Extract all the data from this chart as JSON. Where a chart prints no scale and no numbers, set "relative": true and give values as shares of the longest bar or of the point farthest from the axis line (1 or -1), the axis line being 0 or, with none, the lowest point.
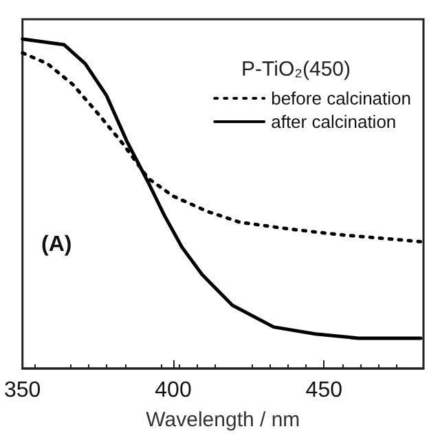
{
  "chart_data": {
    "type": "line",
    "relative": true,
    "xlabel": "Wavelength / nm",
    "legend_title": "P-TiO₂(450)",
    "xlim": [
      350,
      483
    ],
    "xticks": [
      350,
      400,
      450
    ],
    "legend": "top right",
    "grid": false,
    "marker": "none",
    "annotations": [
      "(A)"
    ],
    "series": [
      {
        "name": "before calcination",
        "color": "#000000",
        "line_style": "dotted",
        "x": [
          350,
          358.3,
          366.7,
          375,
          383.3,
          391.7,
          400,
          411.25,
          422,
          438.75,
          455.4,
          472,
          482
        ],
        "values": [
          0.958,
          0.925,
          0.862,
          0.774,
          0.682,
          0.577,
          0.523,
          0.477,
          0.444,
          0.423,
          0.406,
          0.393,
          0.385
        ]
      },
      {
        "name": "after calcination",
        "color": "#000000",
        "line_style": "solid",
        "x": [
          350,
          363.75,
          370.8,
          377.9,
          384.6,
          391.7,
          397.1,
          402.9,
          409.6,
          419.6,
          433.3,
          447.1,
          461.3,
          482.1
        ],
        "values": [
          1.0,
          0.983,
          0.925,
          0.828,
          0.69,
          0.565,
          0.464,
          0.368,
          0.285,
          0.192,
          0.126,
          0.105,
          0.092,
          0.092
        ]
      }
    ]
  }
}
